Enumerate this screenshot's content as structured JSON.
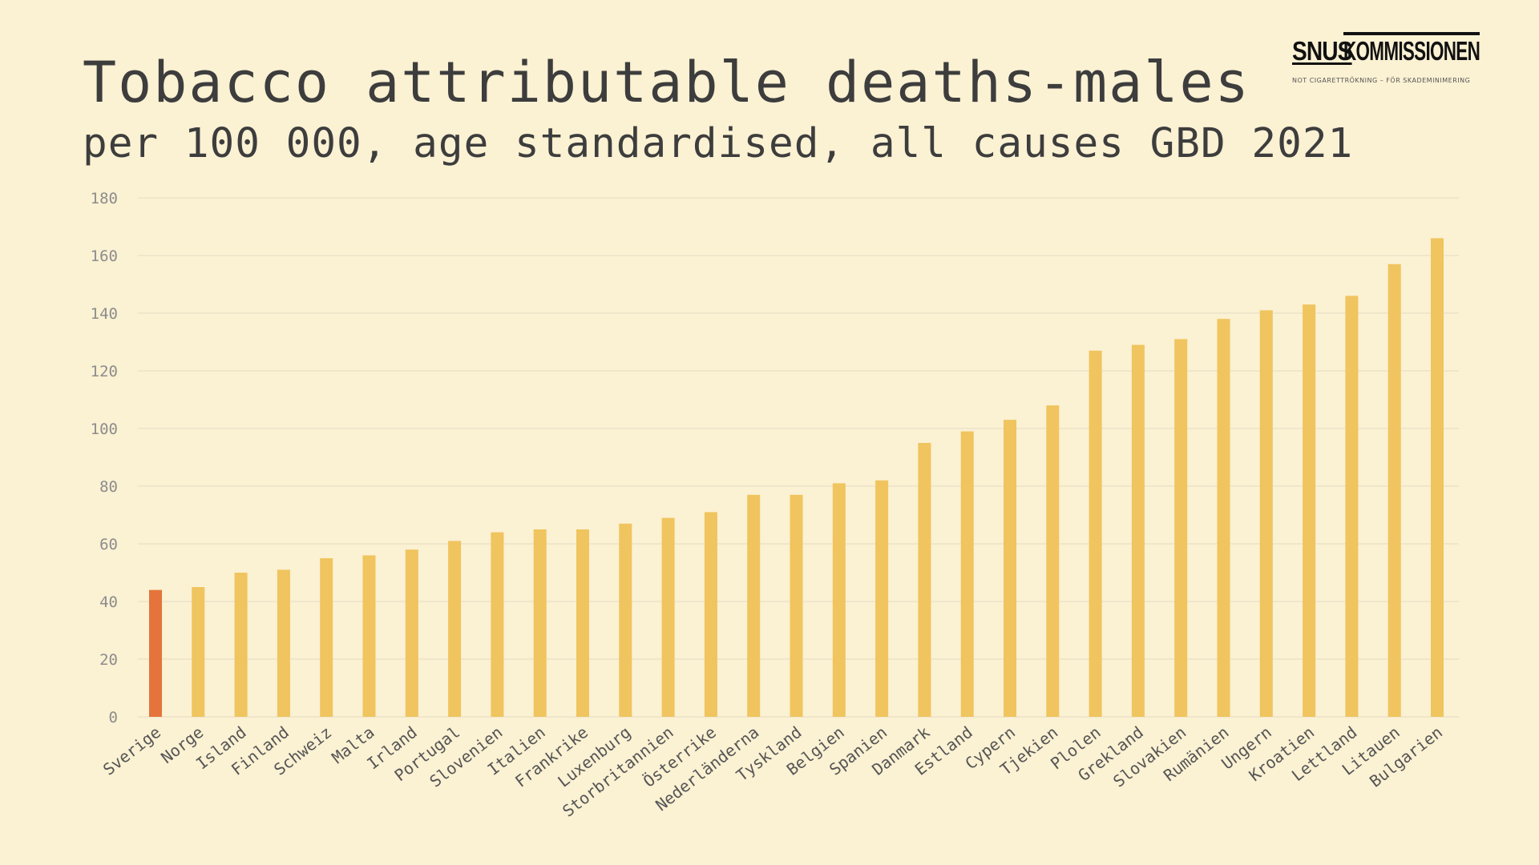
{
  "title": "Tobacco attributable deaths-males",
  "subtitle": "per 100 000, age standardised, all causes GBD 2021",
  "logo": {
    "snus": "SNUS",
    "kommissionen": "KOMMISSIONEN",
    "tagline": "NOT CIGARETTRÖKNING – FÖR SKADEMINIMERING"
  },
  "colors": {
    "background": "#fbf1d3",
    "bar": "#f0c45e",
    "highlight": "#e4743b",
    "grid": "#efe6cc"
  },
  "chart_data": {
    "type": "bar",
    "title": "Tobacco attributable deaths-males",
    "subtitle": "per 100 000, age standardised, all causes GBD 2021",
    "xlabel": "",
    "ylabel": "",
    "ylim": [
      0,
      180
    ],
    "yticks": [
      0,
      20,
      40,
      60,
      80,
      100,
      120,
      140,
      160,
      180
    ],
    "grid": true,
    "highlight_category": "Sverige",
    "categories": [
      "Sverige",
      "Norge",
      "Island",
      "Finland",
      "Schweiz",
      "Malta",
      "Irland",
      "Portugal",
      "Slovenien",
      "Italien",
      "Frankrike",
      "Luxenburg",
      "Storbritannien",
      "Österrike",
      "Nederländerna",
      "Tyskland",
      "Belgien",
      "Spanien",
      "Danmark",
      "Estland",
      "Cypern",
      "Tjekien",
      "Plolen",
      "Grekland",
      "Slovakien",
      "Rumänien",
      "Ungern",
      "Kroatien",
      "Lettland",
      "Litauen",
      "Bulgarien"
    ],
    "values": [
      44,
      45,
      50,
      51,
      55,
      56,
      58,
      61,
      64,
      65,
      65,
      67,
      69,
      71,
      77,
      77,
      81,
      82,
      95,
      99,
      103,
      108,
      127,
      129,
      131,
      138,
      141,
      143,
      146,
      157,
      166
    ]
  }
}
